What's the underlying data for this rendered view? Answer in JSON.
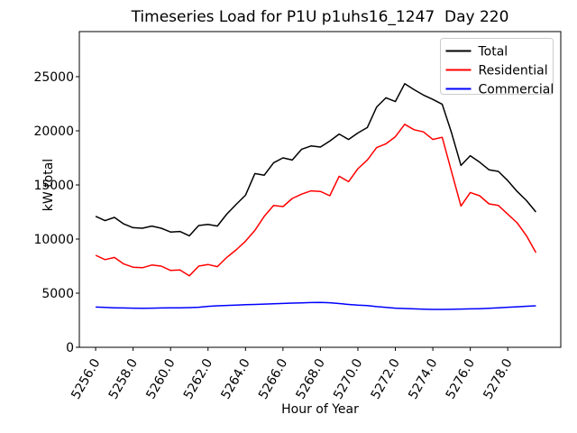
{
  "figure": {
    "title": "Timeseries Load for P1U p1uhs16_1247  Day 220",
    "xlabel": "Hour of Year",
    "ylabel": "kW total",
    "background": "#ffffff",
    "axes_color": "#000000",
    "legend_border_color": "#cccccc"
  },
  "chart_data": {
    "type": "line",
    "title": "Timeseries Load for P1U p1uhs16_1247  Day 220",
    "xlabel": "Hour of Year",
    "ylabel": "kW total",
    "grid": false,
    "legend_position": "upper right",
    "xlim": [
      5255.13,
      5280.83
    ],
    "ylim": [
      0,
      29167
    ],
    "x_tick_labels": [
      "5256.0",
      "5258.0",
      "5260.0",
      "5262.0",
      "5264.0",
      "5266.0",
      "5268.0",
      "5270.0",
      "5272.0",
      "5274.0",
      "5276.0",
      "5278.0"
    ],
    "x_tick_values": [
      5256,
      5258,
      5260,
      5262,
      5264,
      5266,
      5268,
      5270,
      5272,
      5274,
      5276,
      5278
    ],
    "y_tick_labels": [
      "0",
      "5000",
      "10000",
      "15000",
      "20000",
      "25000"
    ],
    "y_tick_values": [
      0,
      5000,
      10000,
      15000,
      20000,
      25000
    ],
    "x": [
      5256.0,
      5256.5,
      5257.0,
      5257.5,
      5258.0,
      5258.5,
      5259.0,
      5259.5,
      5260.0,
      5260.5,
      5261.0,
      5261.5,
      5262.0,
      5262.5,
      5263.0,
      5263.5,
      5264.0,
      5264.5,
      5265.0,
      5265.5,
      5266.0,
      5266.5,
      5267.0,
      5267.5,
      5268.0,
      5268.5,
      5269.0,
      5269.5,
      5270.0,
      5270.5,
      5271.0,
      5271.5,
      5272.0,
      5272.5,
      5273.0,
      5273.5,
      5274.0,
      5274.5,
      5275.0,
      5275.5,
      5276.0,
      5276.5,
      5277.0,
      5277.5,
      5278.0,
      5278.5,
      5279.0,
      5279.5
    ],
    "series": [
      {
        "name": "Total",
        "color": "#000000",
        "values": [
          12100,
          11700,
          12000,
          11400,
          11050,
          11000,
          11200,
          11000,
          10650,
          10700,
          10300,
          11250,
          11350,
          11200,
          12300,
          13200,
          14050,
          16050,
          15900,
          17050,
          17500,
          17300,
          18300,
          18600,
          18500,
          19050,
          19700,
          19200,
          19800,
          20300,
          22200,
          23050,
          22700,
          24350,
          23800,
          23300,
          22900,
          22450,
          19800,
          16800,
          17700,
          17100,
          16400,
          16250,
          15400,
          14400,
          13550,
          12500
        ]
      },
      {
        "name": "Residential",
        "color": "#ff0000",
        "values": [
          8500,
          8100,
          8300,
          7700,
          7400,
          7350,
          7600,
          7500,
          7100,
          7150,
          6600,
          7500,
          7650,
          7450,
          8300,
          9000,
          9800,
          10800,
          12100,
          13100,
          13000,
          13750,
          14150,
          14450,
          14400,
          14000,
          15800,
          15300,
          16500,
          17300,
          18450,
          18800,
          19450,
          20600,
          20100,
          19900,
          19200,
          19400,
          16200,
          13050,
          14300,
          14000,
          13250,
          13100,
          12300,
          11500,
          10300,
          8750
        ]
      },
      {
        "name": "Commercial",
        "color": "#0000ff",
        "values": [
          3720,
          3680,
          3650,
          3630,
          3620,
          3610,
          3620,
          3630,
          3640,
          3650,
          3670,
          3700,
          3780,
          3830,
          3870,
          3900,
          3930,
          3960,
          3990,
          4020,
          4050,
          4080,
          4110,
          4130,
          4150,
          4120,
          4040,
          3960,
          3890,
          3850,
          3760,
          3690,
          3620,
          3580,
          3550,
          3520,
          3500,
          3500,
          3510,
          3530,
          3550,
          3570,
          3600,
          3650,
          3700,
          3740,
          3790,
          3830
        ]
      }
    ]
  }
}
